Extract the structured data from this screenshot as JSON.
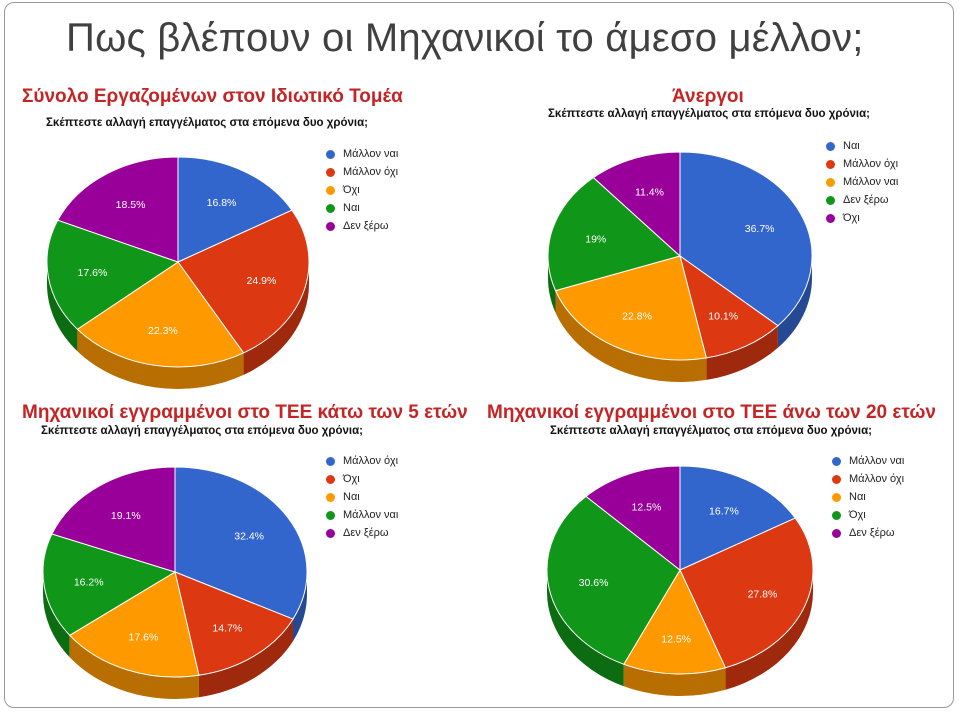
{
  "slide": {
    "title": "Πως βλέπουν οι Μηχανικοί το άμεσο μέλλον;"
  },
  "colors": {
    "title": "#404040",
    "panel_title": "#c62424",
    "blue": "#3366cc",
    "red": "#dc3912",
    "orange": "#ff9900",
    "green": "#109618",
    "purple": "#990099"
  },
  "panels": [
    {
      "title": "Σύνολο Εργαζομένων στον Ιδιωτικό Τομέα",
      "subtitle": "Σκέπτεστε αλλαγή επαγγέλματος στα επόμενα δυο χρόνια;"
    },
    {
      "title": "Άνεργοι",
      "subtitle": "Σκέπτεστε αλλαγή επαγγέλματος στα επόμενα δυο χρόνια;"
    },
    {
      "title": "Μηχανικοί εγγραμμένοι στο ΤΕΕ κάτω των 5 ετών",
      "subtitle": "Σκέπτεστε αλλαγή επαγγέλματος στα επόμενα δυο χρόνια;"
    },
    {
      "title": "Μηχανικοί εγγραμμένοι στο ΤΕΕ άνω των 20 ετών",
      "subtitle": "Σκέπτεστε αλλαγή επαγγέλματος στα επόμενα δυο χρόνια;"
    }
  ],
  "chart_data": [
    {
      "type": "pie",
      "title": "Σύνολο Εργαζομένων στον Ιδιωτικό Τομέα",
      "subtitle": "Σκέπτεστε αλλαγή επαγγέλματος στα επόμενα δυο χρόνια;",
      "legend_position": "right",
      "slices": [
        {
          "label": "Μάλλον ναι",
          "value": 16.8,
          "display": "16.8%",
          "color": "#3366cc"
        },
        {
          "label": "Μάλλον όχι",
          "value": 24.9,
          "display": "24.9%",
          "color": "#dc3912"
        },
        {
          "label": "Όχι",
          "value": 22.3,
          "display": "22.3%",
          "color": "#ff9900"
        },
        {
          "label": "Ναι",
          "value": 17.6,
          "display": "17.6%",
          "color": "#109618"
        },
        {
          "label": "Δεν ξέρω",
          "value": 18.5,
          "display": "18.5%",
          "color": "#990099"
        }
      ]
    },
    {
      "type": "pie",
      "title": "Άνεργοι",
      "subtitle": "Σκέπτεστε αλλαγή επαγγέλματος στα επόμενα δυο χρόνια;",
      "legend_position": "right",
      "slices": [
        {
          "label": "Ναι",
          "value": 36.7,
          "display": "36.7%",
          "color": "#3366cc"
        },
        {
          "label": "Μάλλον όχι",
          "value": 10.1,
          "display": "10.1%",
          "color": "#dc3912"
        },
        {
          "label": "Μάλλον ναι",
          "value": 22.8,
          "display": "22.8%",
          "color": "#ff9900"
        },
        {
          "label": "Δεν ξέρω",
          "value": 19,
          "display": "19%",
          "color": "#109618"
        },
        {
          "label": "Όχι",
          "value": 11.4,
          "display": "11.4%",
          "color": "#990099"
        }
      ]
    },
    {
      "type": "pie",
      "title": "Μηχανικοί εγγραμμένοι στο ΤΕΕ κάτω των 5 ετών",
      "subtitle": "Σκέπτεστε αλλαγή επαγγέλματος στα επόμενα δυο χρόνια;",
      "legend_position": "right",
      "slices": [
        {
          "label": "Μάλλον όχι",
          "value": 32.4,
          "display": "32.4%",
          "color": "#3366cc"
        },
        {
          "label": "Όχι",
          "value": 14.7,
          "display": "14.7%",
          "color": "#dc3912"
        },
        {
          "label": "Ναι",
          "value": 17.6,
          "display": "17.6%",
          "color": "#ff9900"
        },
        {
          "label": "Μάλλον ναι",
          "value": 16.2,
          "display": "16.2%",
          "color": "#109618"
        },
        {
          "label": "Δεν ξέρω",
          "value": 19.1,
          "display": "19.1%",
          "color": "#990099"
        }
      ]
    },
    {
      "type": "pie",
      "title": "Μηχανικοί εγγραμμένοι στο ΤΕΕ άνω των 20 ετών",
      "subtitle": "Σκέπτεστε αλλαγή επαγγέλματος στα επόμενα δυο χρόνια;",
      "legend_position": "right",
      "slices": [
        {
          "label": "Μάλλον ναι",
          "value": 16.7,
          "display": "16.7%",
          "color": "#3366cc"
        },
        {
          "label": "Μάλλον όχι",
          "value": 27.8,
          "display": "27.8%",
          "color": "#dc3912"
        },
        {
          "label": "Ναι",
          "value": 12.5,
          "display": "12.5%",
          "color": "#ff9900"
        },
        {
          "label": "Όχι",
          "value": 30.6,
          "display": "30.6%",
          "color": "#109618"
        },
        {
          "label": "Δεν ξέρω",
          "value": 12.5,
          "display": "12.5%",
          "color": "#990099"
        }
      ]
    }
  ]
}
